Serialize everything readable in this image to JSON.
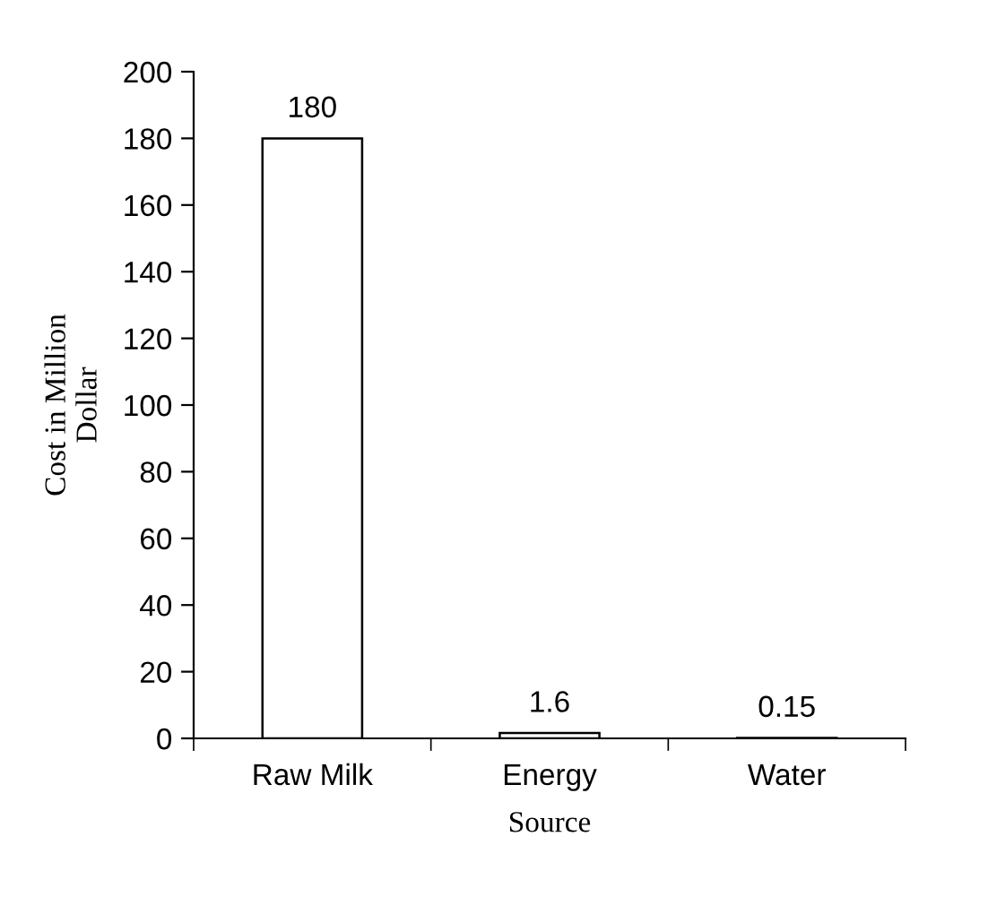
{
  "chart_data": {
    "type": "bar",
    "xlabel": "Source",
    "ylabel": "Cost in Million\nDollar",
    "categories": [
      "Raw Milk",
      "Energy",
      "Water"
    ],
    "values": [
      180,
      1.6,
      0.15
    ],
    "color": "#ffffff",
    "ylim": [
      0,
      200
    ],
    "yticks": [
      0,
      20,
      40,
      60,
      80,
      100,
      120,
      140,
      160,
      180,
      200
    ],
    "data_labels": true,
    "grid": false,
    "legend": false
  }
}
